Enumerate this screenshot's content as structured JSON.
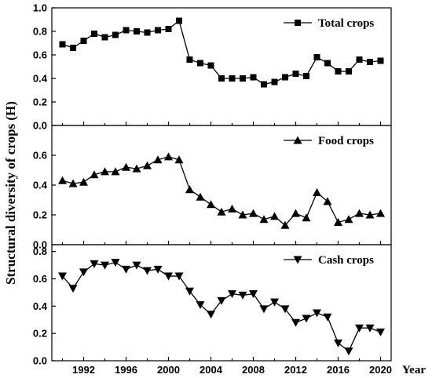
{
  "chart_data": {
    "type": "line",
    "ylabel": "Structural diversity of crops (H)",
    "xlabel": "Year",
    "x": [
      1990,
      1991,
      1992,
      1993,
      1994,
      1995,
      1996,
      1997,
      1998,
      1999,
      2000,
      2001,
      2002,
      2003,
      2004,
      2005,
      2006,
      2007,
      2008,
      2009,
      2010,
      2011,
      2012,
      2013,
      2014,
      2015,
      2016,
      2017,
      2018,
      2019,
      2020
    ],
    "xticks": [
      "1992",
      "1996",
      "2000",
      "2004",
      "2008",
      "2012",
      "2016",
      "2020"
    ],
    "xlim": [
      1989,
      2021
    ],
    "panels": [
      {
        "name": "Total crops",
        "marker": "square",
        "ylim": [
          0,
          1.0
        ],
        "yticks": [
          "0.0",
          "0.2",
          "0.4",
          "0.6",
          "0.8",
          "1.0"
        ],
        "legend_position": "top-right",
        "values": [
          0.69,
          0.66,
          0.72,
          0.78,
          0.75,
          0.77,
          0.81,
          0.8,
          0.79,
          0.81,
          0.82,
          0.89,
          0.56,
          0.53,
          0.51,
          0.4,
          0.4,
          0.4,
          0.41,
          0.35,
          0.37,
          0.41,
          0.44,
          0.42,
          0.58,
          0.53,
          0.46,
          0.46,
          0.56,
          0.54,
          0.55
        ]
      },
      {
        "name": "Food crops",
        "marker": "triangle-up",
        "ylim": [
          0,
          0.8
        ],
        "yticks": [
          "0.0",
          "0.2",
          "0.4",
          "0.6"
        ],
        "legend_position": "top-right",
        "values": [
          0.43,
          0.41,
          0.42,
          0.47,
          0.49,
          0.49,
          0.52,
          0.51,
          0.53,
          0.57,
          0.59,
          0.57,
          0.37,
          0.32,
          0.27,
          0.22,
          0.24,
          0.2,
          0.21,
          0.17,
          0.19,
          0.13,
          0.21,
          0.18,
          0.35,
          0.29,
          0.15,
          0.17,
          0.21,
          0.2,
          0.21
        ]
      },
      {
        "name": "Cash crops",
        "marker": "triangle-down",
        "ylim": [
          0,
          0.85
        ],
        "yticks": [
          "0.0",
          "0.2",
          "0.4",
          "0.6",
          "0.8"
        ],
        "legend_position": "top-right",
        "values": [
          0.62,
          0.53,
          0.65,
          0.71,
          0.7,
          0.72,
          0.67,
          0.7,
          0.66,
          0.67,
          0.62,
          0.62,
          0.51,
          0.41,
          0.34,
          0.44,
          0.49,
          0.48,
          0.49,
          0.38,
          0.43,
          0.38,
          0.28,
          0.31,
          0.35,
          0.32,
          0.13,
          0.07,
          0.24,
          0.24,
          0.21
        ]
      }
    ]
  }
}
